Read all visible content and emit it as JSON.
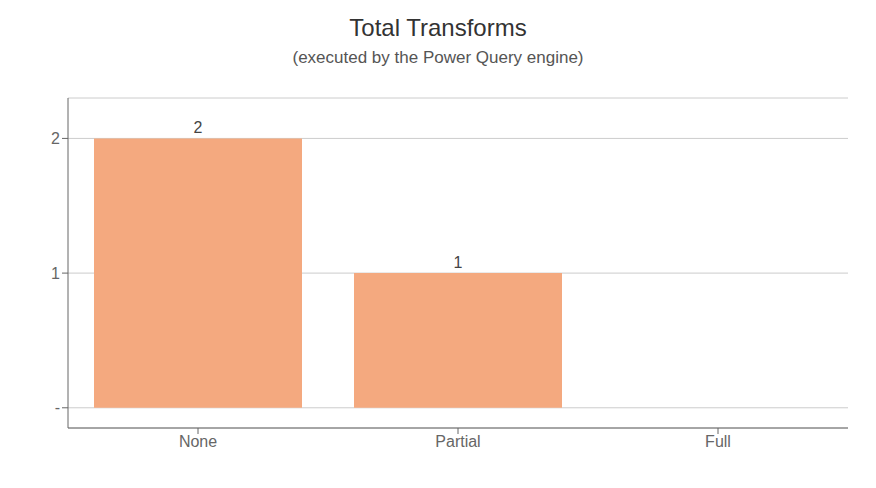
{
  "chart_data": {
    "type": "bar",
    "title": "Total Transforms",
    "subtitle": "(executed by the Power Query engine)",
    "categories": [
      "None",
      "Partial",
      "Full"
    ],
    "values": [
      2,
      1,
      0
    ],
    "color": "#F4A97F",
    "ylim": [
      -0.15,
      2.3
    ],
    "yticks": [
      {
        "value": 0,
        "label": "-"
      },
      1,
      2
    ],
    "grid": true,
    "data_labels": true
  }
}
